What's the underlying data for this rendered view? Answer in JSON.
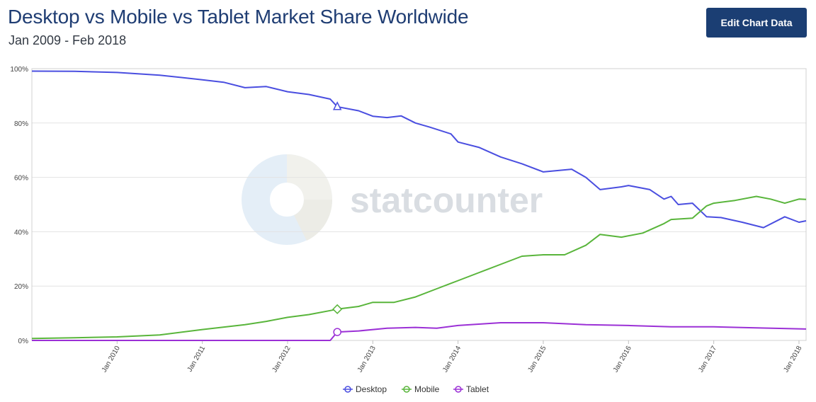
{
  "header": {
    "title": "Desktop vs Mobile vs Tablet Market Share Worldwide",
    "subtitle": "Jan 2009 - Feb 2018",
    "edit_button_label": "Edit Chart Data"
  },
  "watermark": {
    "text": "statcounter"
  },
  "colors": {
    "Desktop": "#4a4ee0",
    "Mobile": "#59b53b",
    "Tablet": "#9b30d6",
    "grid": "#e3e3e3"
  },
  "chart_data": {
    "type": "line",
    "title": "Desktop vs Mobile vs Tablet Market Share Worldwide",
    "subtitle": "Jan 2009 - Feb 2018",
    "xlabel": "",
    "ylabel": "",
    "x_range": [
      "2009-01",
      "2018-02"
    ],
    "ylim": [
      0,
      100
    ],
    "y_ticks": [
      "0%",
      "20%",
      "40%",
      "60%",
      "80%",
      "100%"
    ],
    "x_ticks": [
      "Jan 2010",
      "Jan 2011",
      "Jan 2012",
      "Jan 2013",
      "Jan 2014",
      "Jan 2015",
      "Jan 2016",
      "Jan 2017",
      "Jan 2018"
    ],
    "grid": true,
    "legend_position": "bottom-center",
    "series": [
      {
        "name": "Desktop",
        "points": [
          [
            "2009-01",
            99.1
          ],
          [
            "2009-07",
            99.0
          ],
          [
            "2010-01",
            98.6
          ],
          [
            "2010-07",
            97.6
          ],
          [
            "2011-01",
            95.9
          ],
          [
            "2011-04",
            95.0
          ],
          [
            "2011-07",
            93.0
          ],
          [
            "2011-10",
            93.4
          ],
          [
            "2012-01",
            91.5
          ],
          [
            "2012-04",
            90.5
          ],
          [
            "2012-07",
            88.8
          ],
          [
            "2012-08",
            86.0
          ],
          [
            "2012-11",
            84.5
          ],
          [
            "2013-01",
            82.5
          ],
          [
            "2013-03",
            82.0
          ],
          [
            "2013-05",
            82.6
          ],
          [
            "2013-07",
            80.0
          ],
          [
            "2013-09",
            78.5
          ],
          [
            "2013-12",
            76.0
          ],
          [
            "2014-01",
            73.0
          ],
          [
            "2014-04",
            71.0
          ],
          [
            "2014-07",
            67.5
          ],
          [
            "2014-10",
            65.0
          ],
          [
            "2015-01",
            62.0
          ],
          [
            "2015-03",
            62.5
          ],
          [
            "2015-05",
            63.0
          ],
          [
            "2015-07",
            60.0
          ],
          [
            "2015-09",
            55.5
          ],
          [
            "2015-12",
            56.5
          ],
          [
            "2016-01",
            57.0
          ],
          [
            "2016-04",
            55.5
          ],
          [
            "2016-06",
            52.0
          ],
          [
            "2016-07",
            53.0
          ],
          [
            "2016-08",
            50.0
          ],
          [
            "2016-10",
            50.5
          ],
          [
            "2016-12",
            45.5
          ],
          [
            "2017-02",
            45.2
          ],
          [
            "2017-05",
            43.5
          ],
          [
            "2017-08",
            41.5
          ],
          [
            "2017-11",
            45.5
          ],
          [
            "2018-01",
            43.5
          ],
          [
            "2018-02",
            44.0
          ]
        ]
      },
      {
        "name": "Mobile",
        "points": [
          [
            "2009-01",
            0.7
          ],
          [
            "2009-07",
            1.0
          ],
          [
            "2010-01",
            1.3
          ],
          [
            "2010-07",
            2.0
          ],
          [
            "2011-01",
            4.0
          ],
          [
            "2011-07",
            5.8
          ],
          [
            "2011-10",
            7.0
          ],
          [
            "2012-01",
            8.5
          ],
          [
            "2012-04",
            9.5
          ],
          [
            "2012-07",
            11.0
          ],
          [
            "2012-08",
            11.5
          ],
          [
            "2012-11",
            12.5
          ],
          [
            "2013-01",
            14.0
          ],
          [
            "2013-04",
            14.0
          ],
          [
            "2013-07",
            16.0
          ],
          [
            "2013-10",
            19.0
          ],
          [
            "2014-01",
            22.0
          ],
          [
            "2014-04",
            25.0
          ],
          [
            "2014-07",
            28.0
          ],
          [
            "2014-10",
            31.0
          ],
          [
            "2015-01",
            31.5
          ],
          [
            "2015-04",
            31.5
          ],
          [
            "2015-07",
            35.0
          ],
          [
            "2015-09",
            39.0
          ],
          [
            "2015-12",
            38.0
          ],
          [
            "2016-03",
            39.5
          ],
          [
            "2016-06",
            43.0
          ],
          [
            "2016-07",
            44.5
          ],
          [
            "2016-10",
            45.0
          ],
          [
            "2016-12",
            49.5
          ],
          [
            "2017-01",
            50.5
          ],
          [
            "2017-04",
            51.5
          ],
          [
            "2017-07",
            53.0
          ],
          [
            "2017-09",
            52.0
          ],
          [
            "2017-11",
            50.5
          ],
          [
            "2018-01",
            52.0
          ],
          [
            "2018-02",
            51.9
          ]
        ]
      },
      {
        "name": "Tablet",
        "points": [
          [
            "2009-01",
            0.0
          ],
          [
            "2012-07",
            0.0
          ],
          [
            "2012-08",
            3.1
          ],
          [
            "2012-11",
            3.5
          ],
          [
            "2013-03",
            4.5
          ],
          [
            "2013-07",
            4.8
          ],
          [
            "2013-10",
            4.5
          ],
          [
            "2014-01",
            5.5
          ],
          [
            "2014-07",
            6.5
          ],
          [
            "2015-01",
            6.5
          ],
          [
            "2015-07",
            5.8
          ],
          [
            "2016-01",
            5.5
          ],
          [
            "2016-07",
            5.0
          ],
          [
            "2017-01",
            5.0
          ],
          [
            "2017-07",
            4.6
          ],
          [
            "2018-02",
            4.2
          ]
        ]
      }
    ],
    "markers": [
      {
        "series": "Desktop",
        "x": "2012-08",
        "y": 86.0,
        "shape": "triangle"
      },
      {
        "series": "Mobile",
        "x": "2012-08",
        "y": 11.5,
        "shape": "diamond"
      },
      {
        "series": "Tablet",
        "x": "2012-08",
        "y": 3.1,
        "shape": "circle"
      }
    ]
  }
}
